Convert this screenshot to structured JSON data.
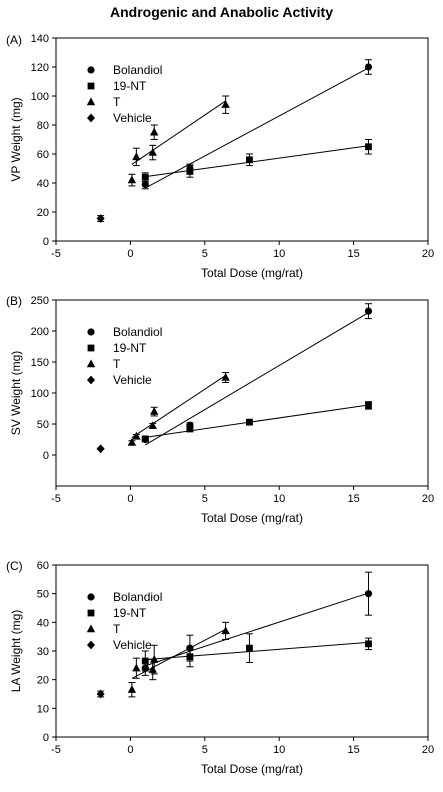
{
  "figure": {
    "title": "Androgenic and Anabolic Activity",
    "legend_labels": [
      "Bolandiol",
      "19-NT",
      "T",
      "Vehicle"
    ]
  },
  "chart_data": [
    {
      "type": "scatter",
      "panel": "(A)",
      "xlabel": "Total Dose (mg/rat)",
      "ylabel": "VP Weight (mg)",
      "xlim": [
        -5,
        20
      ],
      "ylim": [
        0,
        140
      ],
      "xticks": [
        -5,
        0,
        5,
        10,
        15,
        20
      ],
      "yticks": [
        0,
        20,
        40,
        60,
        80,
        100,
        120,
        140
      ],
      "grid": false,
      "legend_position": "top-left",
      "series": [
        {
          "name": "Bolandiol",
          "marker": "circle",
          "x": [
            1,
            4,
            16
          ],
          "y": [
            39,
            50,
            120
          ],
          "err": [
            3,
            3,
            5
          ],
          "fit": true
        },
        {
          "name": "19-NT",
          "marker": "square",
          "x": [
            1,
            4,
            8,
            16
          ],
          "y": [
            44,
            48,
            56,
            65
          ],
          "err": [
            3,
            4,
            4,
            5
          ],
          "fit": true
        },
        {
          "name": "T",
          "marker": "triangle",
          "x": [
            0.1,
            0.4,
            1.5,
            1.6,
            6.4
          ],
          "y": [
            42,
            58,
            61,
            75,
            94
          ],
          "err": [
            4,
            6,
            5,
            5,
            6
          ],
          "fit": true
        },
        {
          "name": "Vehicle",
          "marker": "diamond",
          "x": [
            -2
          ],
          "y": [
            15.5
          ],
          "err": [
            2
          ],
          "fit": false
        }
      ]
    },
    {
      "type": "scatter",
      "panel": "(B)",
      "xlabel": "Total Dose (mg/rat)",
      "ylabel": "SV Weight (mg)",
      "xlim": [
        -5,
        20
      ],
      "ylim": [
        -50,
        250
      ],
      "xticks": [
        -5,
        0,
        5,
        10,
        15,
        20
      ],
      "yticks": [
        0,
        50,
        100,
        150,
        200,
        250
      ],
      "grid": false,
      "legend_position": "top-left",
      "series": [
        {
          "name": "Bolandiol",
          "marker": "circle",
          "x": [
            1,
            4,
            16
          ],
          "y": [
            25,
            48,
            232
          ],
          "err": [
            3,
            4,
            12
          ],
          "fit": true
        },
        {
          "name": "19-NT",
          "marker": "square",
          "x": [
            1,
            4,
            8,
            16
          ],
          "y": [
            26,
            42,
            53,
            80
          ],
          "err": [
            3,
            3,
            3,
            6
          ],
          "fit": true
        },
        {
          "name": "T",
          "marker": "triangle",
          "x": [
            0.1,
            0.4,
            1.5,
            1.6,
            6.4
          ],
          "y": [
            20,
            30,
            47,
            70,
            125
          ],
          "err": [
            3,
            3,
            4,
            7,
            8
          ],
          "fit": true
        },
        {
          "name": "Vehicle",
          "marker": "diamond",
          "x": [
            -2
          ],
          "y": [
            10
          ],
          "err": [
            1
          ],
          "fit": false
        }
      ]
    },
    {
      "type": "scatter",
      "panel": "(C)",
      "xlabel": "Total Dose (mg/rat)",
      "ylabel": "LA Weight (mg)",
      "xlim": [
        -5,
        20
      ],
      "ylim": [
        0,
        60
      ],
      "xticks": [
        -5,
        0,
        5,
        10,
        15,
        20
      ],
      "yticks": [
        0,
        10,
        20,
        30,
        40,
        50,
        60
      ],
      "grid": false,
      "legend_position": "top-left",
      "series": [
        {
          "name": "Bolandiol",
          "marker": "circle",
          "x": [
            1,
            4,
            16
          ],
          "y": [
            24,
            31,
            50
          ],
          "err": [
            2.5,
            4.5,
            7.5
          ],
          "fit": true
        },
        {
          "name": "19-NT",
          "marker": "square",
          "x": [
            1,
            4,
            8,
            16
          ],
          "y": [
            26.5,
            28,
            31,
            32.5
          ],
          "err": [
            3.5,
            3.5,
            5,
            2
          ],
          "fit": true
        },
        {
          "name": "T",
          "marker": "triangle",
          "x": [
            0.1,
            0.4,
            1.5,
            1.6,
            6.4
          ],
          "y": [
            16.5,
            24,
            23.5,
            27,
            37
          ],
          "err": [
            2.5,
            3.5,
            3.5,
            5,
            3
          ],
          "fit": true
        },
        {
          "name": "Vehicle",
          "marker": "diamond",
          "x": [
            -2
          ],
          "y": [
            15
          ],
          "err": [
            1
          ],
          "fit": false
        }
      ]
    }
  ]
}
